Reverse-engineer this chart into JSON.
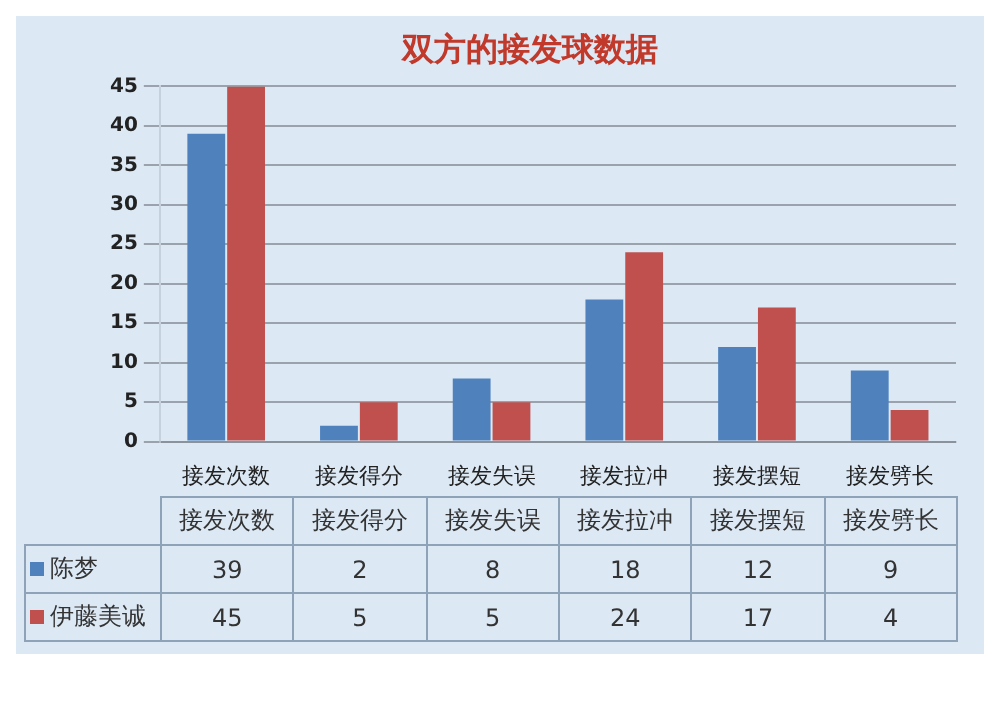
{
  "chart_data": {
    "type": "bar",
    "title": "双方的接发球数据",
    "categories": [
      "接发次数",
      "接发得分",
      "接发失误",
      "接发拉冲",
      "接发摆短",
      "接发劈长"
    ],
    "series": [
      {
        "name": "陈梦",
        "color": "#4f81bd",
        "values": [
          39,
          2,
          8,
          18,
          12,
          9
        ]
      },
      {
        "name": "伊藤美诚",
        "color": "#c0504d",
        "values": [
          45,
          5,
          5,
          24,
          17,
          4
        ]
      }
    ],
    "ylim": [
      0,
      45
    ],
    "yticks": [
      0,
      5,
      10,
      15,
      20,
      25,
      30,
      35,
      40,
      45
    ],
    "grid": "y",
    "legend": "bottom",
    "data_labels": true
  }
}
